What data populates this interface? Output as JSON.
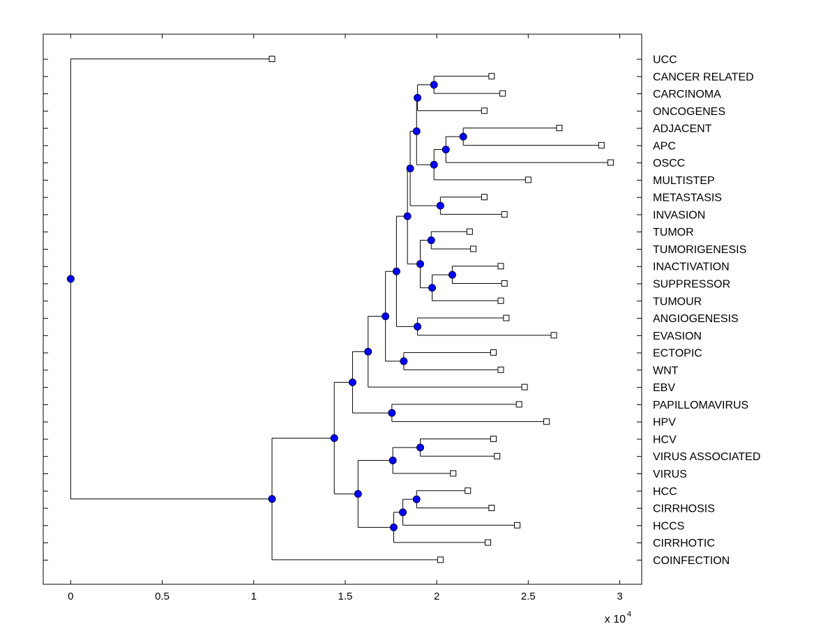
{
  "chart_data": {
    "type": "dendrogram",
    "title": "",
    "xlabel": "",
    "ylabel": "",
    "x_multiplier_label": "x 10",
    "x_multiplier_exponent": "4",
    "xlim": [
      -0.15,
      3.12
    ],
    "xticks": [
      0,
      0.5,
      1,
      1.5,
      2,
      2.5,
      3
    ],
    "xtick_labels": [
      "0",
      "0.5",
      "1",
      "1.5",
      "2",
      "2.5",
      "3"
    ],
    "x_scale_factor": 10000,
    "leaves": [
      {
        "label": "UCC",
        "value": 1.1
      },
      {
        "label": "CANCER RELATED",
        "value": 2.3
      },
      {
        "label": "CARCINOMA",
        "value": 2.36
      },
      {
        "label": "ONCOGENES",
        "value": 2.26
      },
      {
        "label": "ADJACENT",
        "value": 2.67
      },
      {
        "label": "APC",
        "value": 2.9
      },
      {
        "label": "OSCC",
        "value": 2.95
      },
      {
        "label": "MULTISTEP",
        "value": 2.5
      },
      {
        "label": "METASTASIS",
        "value": 2.26
      },
      {
        "label": "INVASION",
        "value": 2.37
      },
      {
        "label": "TUMOR",
        "value": 2.18
      },
      {
        "label": "TUMORIGENESIS",
        "value": 2.2
      },
      {
        "label": "INACTIVATION",
        "value": 2.35
      },
      {
        "label": "SUPPRESSOR",
        "value": 2.37
      },
      {
        "label": "TUMOUR",
        "value": 2.35
      },
      {
        "label": "ANGIOGENESIS",
        "value": 2.38
      },
      {
        "label": "EVASION",
        "value": 2.64
      },
      {
        "label": "ECTOPIC",
        "value": 2.31
      },
      {
        "label": "WNT",
        "value": 2.35
      },
      {
        "label": "EBV",
        "value": 2.48
      },
      {
        "label": "PAPILLOMAVIRUS",
        "value": 2.45
      },
      {
        "label": "HPV",
        "value": 2.6
      },
      {
        "label": "HCV",
        "value": 2.31
      },
      {
        "label": "VIRUS ASSOCIATED",
        "value": 2.33
      },
      {
        "label": "VIRUS",
        "value": 2.09
      },
      {
        "label": "HCC",
        "value": 2.17
      },
      {
        "label": "CIRRHOSIS",
        "value": 2.3
      },
      {
        "label": "HCCS",
        "value": 2.44
      },
      {
        "label": "CIRRHOTIC",
        "value": 2.28
      },
      {
        "label": "COINFECTION",
        "value": 2.02
      }
    ],
    "nodes": [
      {
        "value": 1.985,
        "children": [
          1,
          2
        ]
      },
      {
        "value": 1.895,
        "children": [
          "n0",
          3
        ]
      },
      {
        "value": 2.145,
        "children": [
          4,
          5
        ]
      },
      {
        "value": 2.05,
        "children": [
          "n2",
          6
        ]
      },
      {
        "value": 1.985,
        "children": [
          "n3",
          7
        ]
      },
      {
        "value": 1.89,
        "children": [
          "n1",
          "n4"
        ]
      },
      {
        "value": 2.02,
        "children": [
          8,
          9
        ]
      },
      {
        "value": 1.855,
        "children": [
          "n5",
          "n6"
        ]
      },
      {
        "value": 1.97,
        "children": [
          10,
          11
        ]
      },
      {
        "value": 2.085,
        "children": [
          12,
          13
        ]
      },
      {
        "value": 1.975,
        "children": [
          "n9",
          14
        ]
      },
      {
        "value": 1.91,
        "children": [
          "n8",
          "n10"
        ]
      },
      {
        "value": 1.84,
        "children": [
          "n7",
          "n11"
        ]
      },
      {
        "value": 1.895,
        "children": [
          15,
          16
        ]
      },
      {
        "value": 1.78,
        "children": [
          "n12",
          "n13"
        ]
      },
      {
        "value": 1.82,
        "children": [
          17,
          18
        ]
      },
      {
        "value": 1.72,
        "children": [
          "n14",
          "n15"
        ]
      },
      {
        "value": 1.625,
        "children": [
          "n16",
          19
        ]
      },
      {
        "value": 1.755,
        "children": [
          20,
          21
        ]
      },
      {
        "value": 1.54,
        "children": [
          "n17",
          "n18"
        ]
      },
      {
        "value": 1.91,
        "children": [
          22,
          23
        ]
      },
      {
        "value": 1.76,
        "children": [
          "n20",
          24
        ]
      },
      {
        "value": 1.89,
        "children": [
          25,
          26
        ]
      },
      {
        "value": 1.815,
        "children": [
          "n22",
          27
        ]
      },
      {
        "value": 1.765,
        "children": [
          "n23",
          28
        ]
      },
      {
        "value": 1.57,
        "children": [
          "n21",
          "n24"
        ]
      },
      {
        "value": 1.44,
        "children": [
          "n19",
          "n25"
        ]
      },
      {
        "value": 1.1,
        "children": [
          "n26",
          29
        ]
      },
      {
        "value": 0.0,
        "children": [
          0,
          "n27"
        ]
      }
    ],
    "colors": {
      "node_fill": "#0000ff",
      "node_stroke": "#000040",
      "line": "#000000",
      "leaf_fill": "#ffffff",
      "background": "#ffffff"
    }
  }
}
